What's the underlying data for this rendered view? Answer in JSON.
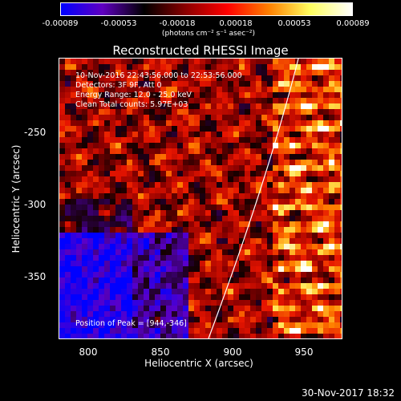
{
  "colorbar": {
    "ticks": [
      "-0.00089",
      "-0.00053",
      "-0.00018",
      "0.00018",
      "0.00053",
      "0.00089"
    ],
    "unit": "(photons cm⁻² s⁻¹ asec⁻²)",
    "colors": [
      "#0000ff",
      "#6000c0",
      "#000000",
      "#8b0000",
      "#ff0000",
      "#ff8000",
      "#ffff60",
      "#ffffff"
    ]
  },
  "title": "Reconstructed RHESSI Image",
  "info": {
    "time_range": "10-Nov-2016 22:43:56.000 to 22:53:56.000",
    "detectors": "Detectors: 3F 9F, Att 0",
    "energy": "Energy Range: 12.0 - 25.0 keV",
    "method": "Clean     Total counts: 5.97E+03",
    "peak": "Position of Peak = [944,-346]"
  },
  "axes": {
    "xlabel": "Heliocentric X (arcsec)",
    "ylabel": "Heliocentric Y (arcsec)",
    "xticks": [
      "800",
      "850",
      "900",
      "950"
    ],
    "yticks": [
      "-250",
      "-300",
      "-350"
    ],
    "xrange": [
      783,
      977
    ],
    "yrange": [
      -392,
      -199
    ]
  },
  "timestamp": "30-Nov-2017 18:32"
}
